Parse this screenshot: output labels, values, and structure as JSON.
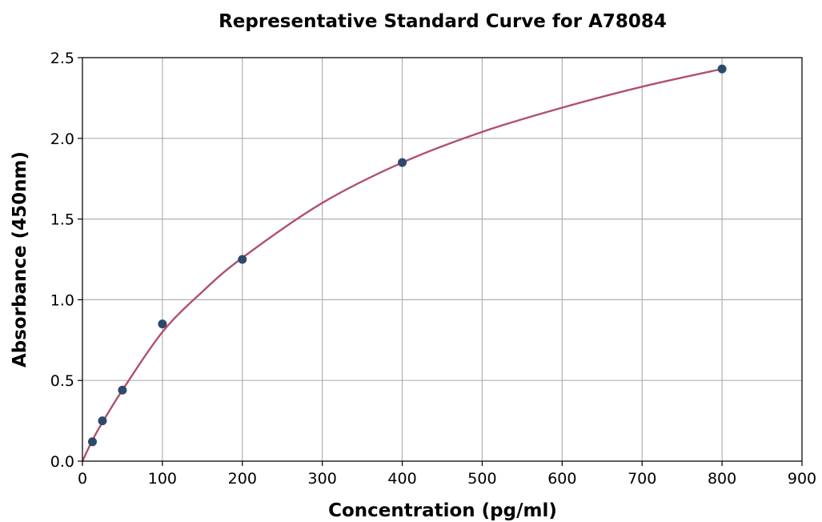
{
  "chart_data": {
    "type": "scatter",
    "title": "Representative Standard Curve for A78084",
    "xlabel": "Concentration (pg/ml)",
    "ylabel": "Absorbance (450nm)",
    "xlim": [
      0,
      900
    ],
    "ylim": [
      0,
      2.5
    ],
    "xticks": [
      0,
      100,
      200,
      300,
      400,
      500,
      600,
      700,
      800,
      900
    ],
    "yticks": [
      0.0,
      0.5,
      1.0,
      1.5,
      2.0,
      2.5
    ],
    "xtick_labels": [
      "0",
      "100",
      "200",
      "300",
      "400",
      "500",
      "600",
      "700",
      "800",
      "900"
    ],
    "ytick_labels": [
      "0.0",
      "0.5",
      "1.0",
      "1.5",
      "2.0",
      "2.5"
    ],
    "grid": true,
    "points": [
      {
        "x": 12.5,
        "y": 0.12
      },
      {
        "x": 25,
        "y": 0.25
      },
      {
        "x": 50,
        "y": 0.44
      },
      {
        "x": 100,
        "y": 0.85
      },
      {
        "x": 200,
        "y": 1.25
      },
      {
        "x": 400,
        "y": 1.85
      },
      {
        "x": 800,
        "y": 2.43
      }
    ],
    "fit_curve": {
      "type": "smooth",
      "x": [
        0,
        12.5,
        25,
        50,
        100,
        150,
        200,
        300,
        400,
        500,
        600,
        700,
        800
      ],
      "y": [
        0.0,
        0.13,
        0.24,
        0.44,
        0.8,
        1.05,
        1.26,
        1.6,
        1.85,
        2.04,
        2.19,
        2.32,
        2.43
      ]
    },
    "colors": {
      "points": "#2e4a6b",
      "curve": "#b05070"
    }
  }
}
